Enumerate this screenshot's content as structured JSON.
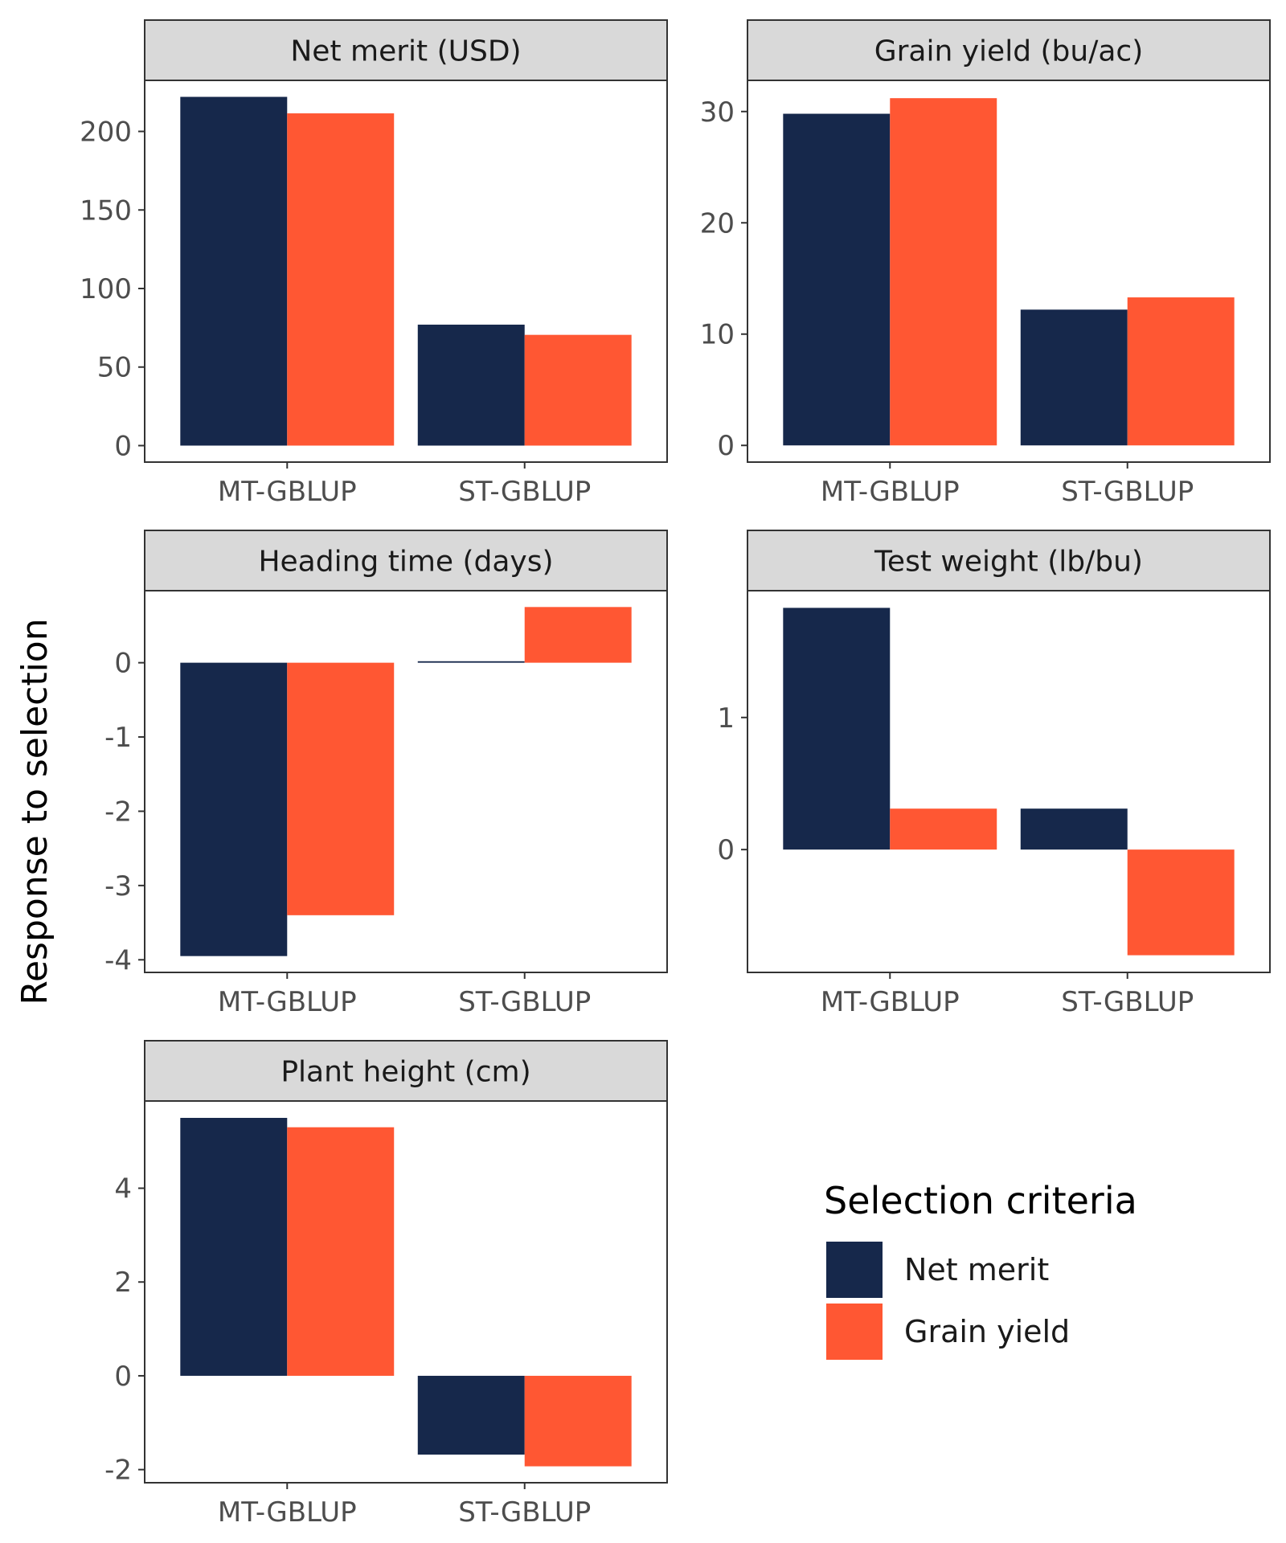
{
  "figure": {
    "ylabel": "Response to selection",
    "colors": {
      "Net merit": "#16284b",
      "Grain yield": "#ff5733"
    }
  },
  "legend": {
    "title": "Selection criteria",
    "items": [
      {
        "label": "Net merit",
        "color": "#16284b"
      },
      {
        "label": "Grain yield",
        "color": "#ff5733"
      }
    ]
  },
  "chart_data": [
    {
      "type": "bar",
      "title": "Net merit (USD)",
      "categories": [
        "MT-GBLUP",
        "ST-GBLUP"
      ],
      "series": [
        {
          "name": "Net merit",
          "values": [
            222,
            77
          ]
        },
        {
          "name": "Grain yield",
          "values": [
            211.5,
            70.5
          ]
        }
      ],
      "ylim": [
        -10.5,
        232.5
      ],
      "yticks": [
        0,
        50,
        100,
        150,
        200
      ],
      "ytick_labels": [
        "0",
        "50",
        "100",
        "150",
        "200"
      ]
    },
    {
      "type": "bar",
      "title": "Grain yield (bu/ac)",
      "categories": [
        "MT-GBLUP",
        "ST-GBLUP"
      ],
      "series": [
        {
          "name": "Net merit",
          "values": [
            29.8,
            12.2
          ]
        },
        {
          "name": "Grain yield",
          "values": [
            31.2,
            13.3
          ]
        }
      ],
      "ylim": [
        -1.5,
        32.8
      ],
      "yticks": [
        0,
        10,
        20,
        30
      ],
      "ytick_labels": [
        "0",
        "10",
        "20",
        "30"
      ]
    },
    {
      "type": "bar",
      "title": "Heading time (days)",
      "categories": [
        "MT-GBLUP",
        "ST-GBLUP"
      ],
      "series": [
        {
          "name": "Net merit",
          "values": [
            -3.95,
            0.02
          ]
        },
        {
          "name": "Grain yield",
          "values": [
            -3.4,
            0.75
          ]
        }
      ],
      "ylim": [
        -4.17,
        0.97
      ],
      "yticks": [
        -4,
        -3,
        -2,
        -1,
        0
      ],
      "ytick_labels": [
        "-4",
        "-3",
        "-2",
        "-1",
        "0"
      ]
    },
    {
      "type": "bar",
      "title": "Test weight (lb/bu)",
      "categories": [
        "MT-GBLUP",
        "ST-GBLUP"
      ],
      "series": [
        {
          "name": "Net merit",
          "values": [
            1.83,
            0.31
          ]
        },
        {
          "name": "Grain yield",
          "values": [
            0.31,
            -0.8
          ]
        }
      ],
      "ylim": [
        -0.93,
        1.96
      ],
      "yticks": [
        0,
        1
      ],
      "ytick_labels": [
        "0",
        "1"
      ]
    },
    {
      "type": "bar",
      "title": "Plant height (cm)",
      "categories": [
        "MT-GBLUP",
        "ST-GBLUP"
      ],
      "series": [
        {
          "name": "Net merit",
          "values": [
            5.5,
            -1.68
          ]
        },
        {
          "name": "Grain yield",
          "values": [
            5.3,
            -1.93
          ]
        }
      ],
      "ylim": [
        -2.28,
        5.86
      ],
      "yticks": [
        -2,
        0,
        2,
        4
      ],
      "ytick_labels": [
        "-2",
        "0",
        "2",
        "4"
      ]
    }
  ]
}
